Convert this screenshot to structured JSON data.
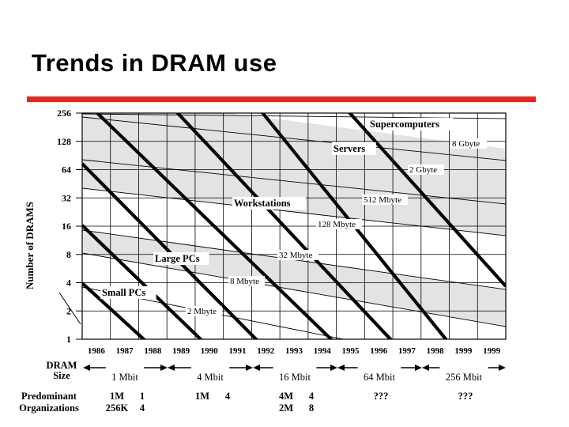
{
  "slide": {
    "title": "Trends in DRAM use"
  },
  "colors": {
    "accent_rule": "#e8261e",
    "band_fill": "#e3e3e3"
  },
  "chart_data": {
    "type": "line",
    "title": "",
    "xlabel": "",
    "ylabel": "Number of DRAMS",
    "y_scale": "log2",
    "x": [
      "1986",
      "1987",
      "1988",
      "1989",
      "1990",
      "1991",
      "1992",
      "1993",
      "1994",
      "1995",
      "1996",
      "1997",
      "1998",
      "1999",
      "1999"
    ],
    "y_ticks": [
      "1",
      "2",
      "4",
      "8",
      "16",
      "32",
      "64",
      "128",
      "256"
    ],
    "grid": true,
    "segments": [
      {
        "name": "Supercomputers",
        "label_at": [
          "1995.7",
          200
        ]
      },
      {
        "name": "Servers",
        "label_at": [
          "1994.4",
          105
        ]
      },
      {
        "name": "Workstations",
        "label_at": [
          "1990.9",
          26
        ]
      },
      {
        "name": "Large PCs",
        "label_at": [
          "1988.8",
          6.4
        ]
      },
      {
        "name": "Small PCs",
        "label_at": [
          "1986.6",
          3.2
        ]
      }
    ],
    "memory_lines": [
      {
        "label": "2 Mbyte"
      },
      {
        "label": "8 Mbyte"
      },
      {
        "label": "32 Mbyte"
      },
      {
        "label": "128 Mbyte"
      },
      {
        "label": "512 Mbyte"
      },
      {
        "label": "2 Gbyte"
      },
      {
        "label": "8 Gbyte"
      }
    ],
    "dram_size": {
      "label": "DRAM Size",
      "generations": [
        "1 Mbit",
        "4 Mbit",
        "16 Mbit",
        "64 Mbit",
        "256 Mbit"
      ]
    },
    "organizations": {
      "label": "Predominant Organizations",
      "rows": [
        {
          "a": "1M",
          "b": "1",
          "c": "256K",
          "d": "4"
        },
        {
          "a": "1M",
          "b": "4",
          "c": "",
          "d": ""
        },
        {
          "a": "4M",
          "b": "4",
          "c": "2M",
          "d": "8"
        },
        {
          "a": "???",
          "b": "",
          "c": "",
          "d": ""
        },
        {
          "a": "???",
          "b": "",
          "c": "",
          "d": ""
        }
      ]
    }
  }
}
